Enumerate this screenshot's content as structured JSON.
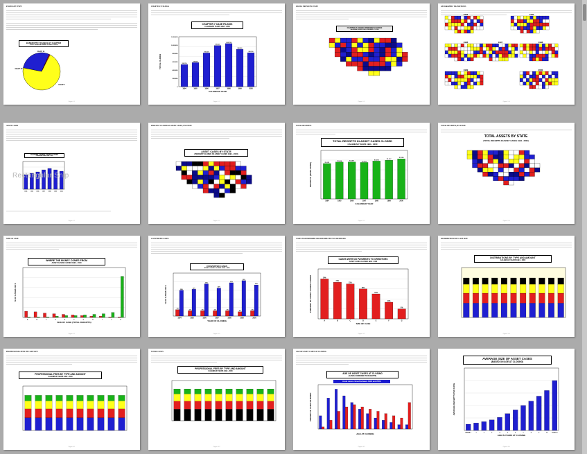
{
  "viewer": {
    "watermark": "Rectangular Snip"
  },
  "colors": {
    "blue": "#1f1fd0",
    "navy": "#0b0b8a",
    "red": "#e21f1f",
    "yellow": "#ffff1a",
    "green": "#19b219",
    "black": "#000000",
    "olive": "#9a9a00"
  },
  "pages": [
    {
      "row": 0,
      "col": 0,
      "lead": "FILINGS BY TYPE",
      "chart_title": "BANKRUPTCY FILINGS BY CHAPTER",
      "chart_subtitle": "TOTAL CASES BETWEEN 1/1994 & 12/2000",
      "figure": "Figure 1.1"
    },
    {
      "row": 0,
      "col": 1,
      "lead": "CHAPTER 7 FILINGS",
      "chart_title": "CHAPTER 7 CASE FILINGS",
      "chart_subtitle": "CALENDAR YEARS 1994 - 2000",
      "xlabel": "CALENDAR YEAR",
      "ylabel": "TOTAL FILINGS",
      "figure": "Figure 1.2"
    },
    {
      "row": 0,
      "col": 2,
      "lead": "FILING TREND BY STATE",
      "chart_title": "CHAPTER 7 FILINGS PERCENT CHANGE",
      "chart_subtitle": "CALENDAR YEARS 1994 COMPARED TO 2000",
      "figure": "Figure 1.3"
    },
    {
      "row": 0,
      "col": 3,
      "lead": "GEOGRAPHIC TRANSITIONS",
      "map_labels": [
        "1994",
        "1995",
        "1996",
        "1997",
        "1998",
        "1999",
        "2000"
      ],
      "figure": "Figure 1.4"
    },
    {
      "row": 1,
      "col": 0,
      "lead": "ASSET CASES",
      "chart_title": "CHAPTER 7 ASSET CASES CLOSED",
      "chart_subtitle": "CALENDAR YEARS 1994 - 2000",
      "figure": "Figure 2.1"
    },
    {
      "row": 1,
      "col": 1,
      "lead": "PERCENT CLOSED AS ASSET CASES, BY STATE",
      "chart_title": "ASSET CASES BY STATE",
      "chart_subtitle": "(PERCENT CLOSED AS ASSET CASES 1994 - 2000)",
      "figure": "Figure 2.2"
    },
    {
      "row": 1,
      "col": 2,
      "lead": "TOTAL RECEIPTS",
      "chart_title": "TOTAL RECEIPTS IN ASSET CASES CLOSED",
      "chart_subtitle": "CALENDAR YEARS 1994 - 2000",
      "xlabel": "CALENDAR YEAR",
      "ylabel": "RECEIPTS (IN MILLIONS)",
      "figure": "Figure 2.3"
    },
    {
      "row": 1,
      "col": 3,
      "lead": "TOTAL RECEIPTS, BY STATE",
      "chart_title": "TOTAL ASSETS BY STATE",
      "chart_subtitle": "(TOTAL RECEIPTS IN ASSET CASES 1994 - 2000)",
      "figure": "Figure 2.4"
    },
    {
      "row": 2,
      "col": 0,
      "lead": "SIZE OF CASE",
      "chart_title": "WHERE THE MONEY COMES FROM",
      "chart_subtitle": "ASSET CASES CLOSED 1994 - 2000",
      "xlabel": "SIZE OF CASE (TOTAL RECEIPTS)",
      "ylabel": "% OF CASES OR $",
      "figure": "Figure 3.1"
    },
    {
      "row": 2,
      "col": 1,
      "lead": "CONVERTED CASES",
      "chart_title": "CONVERTED CASES",
      "chart_subtitle": "ASSET CASES CLOSED 1994 - 2000",
      "xlabel": "YEAR OF CLOSING",
      "ylabel": "% OF CASES OR $",
      "figure": "Figure 3.2"
    },
    {
      "row": 2,
      "col": 2,
      "lead": "CASES TRANSFERRED OR DISTRIBUTED TO CREDITORS",
      "chart_title": "CASES WITH NO PAYMENTS TO CREDITORS",
      "chart_subtitle": "ASSET CASES CLOSED 1994 - 2000",
      "xlabel": "SIZE OF CASE",
      "ylabel": "PERCENT OF ASSET CASES CLOSED",
      "figure": "Figure 3.3"
    },
    {
      "row": 2,
      "col": 3,
      "lead": "DISTRIBUTIONS BY CASE SIZE",
      "chart_title": "DISTRIBUTIONS BY TYPE AND AMOUNT",
      "chart_subtitle": "CALENDAR YEARS 1994 - 2000",
      "xlabel": "SIZE OF CASE",
      "ylabel": "% OF TOTAL RECEIPTS",
      "figure": "Figure 3.4"
    },
    {
      "row": 3,
      "col": 0,
      "lead": "PROFESSIONAL FEES BY CASE SIZE",
      "chart_title": "PROFESSIONAL FEES BY TYPE AND AMOUNT",
      "chart_subtitle": "CALENDAR YEARS 1994 - 2000",
      "xlabel": "SIZE OF CASE",
      "ylabel": "% OF TOTAL RECEIPTS",
      "figure": "Figure 4.1"
    },
    {
      "row": 3,
      "col": 1,
      "lead": "TOTAL COSTS",
      "chart_title": "PROFESSIONAL FEES BY TYPE AND AMOUNT",
      "chart_subtitle": "CALENDAR YEARS 1994 - 2000",
      "xlabel": "SIZE OF CASE",
      "ylabel": "% OF TOTAL RECEIPTS",
      "figure": "Figure 4.2"
    },
    {
      "row": 3,
      "col": 2,
      "lead": "AGE OF ASSET CASES AT CLOSING",
      "chart_title": "AGE OF ASSET CASES AT CLOSING",
      "chart_subtitle": "(CASES COMPARED TO RECEIPTS)",
      "annotation": "Asset cases closed between 1994 and 2000.",
      "xlabel": "AGE AT CLOSING",
      "ylabel": "PERCENT OF CASES OR MONEY",
      "figure": "Figure 4.3"
    },
    {
      "row": 3,
      "col": 3,
      "lead": "",
      "chart_title": "AVERAGE SIZE OF ASSET CASES",
      "chart_subtitle": "(BASED ON AGE AT CLOSING)",
      "annotation": "Asset cases closed between 1994 and 2000.",
      "xlabel": "AGE IN YEARS AT CLOSING",
      "ylabel": "AVERAGE RECEIPTS PER CASE",
      "figure": "Figure 4.4"
    }
  ],
  "chart_data": [
    {
      "type": "pie",
      "title": "BANKRUPTCY FILINGS BY CHAPTER",
      "subtitle": "TOTAL CASES BETWEEN 1/1994 & 12/2000",
      "slices": [
        {
          "name": "CHAP 7",
          "value": 70.6
        },
        {
          "name": "CHAP 13",
          "value": 28.6
        },
        {
          "name": "CHAP 11",
          "value": 0.8
        }
      ]
    },
    {
      "type": "bar",
      "title": "CHAPTER 7 CASE FILINGS",
      "subtitle": "CALENDAR YEARS 1994 - 2000",
      "categories": [
        "1994",
        "1995",
        "1996",
        "1997",
        "1998",
        "1999",
        "2000"
      ],
      "values": [
        532700,
        578800,
        810400,
        989400,
        1035700,
        898800,
        816100
      ],
      "xlabel": "CALENDAR YEAR",
      "ylabel": "TOTAL FILINGS",
      "ylim": [
        0,
        1200000
      ],
      "yticks": [
        "0",
        "200,000",
        "400,000",
        "600,000",
        "800,000",
        "1,000,000",
        "1,200,000"
      ]
    },
    {
      "type": "bar",
      "title": "CHAPTER 7 ASSET CASES CLOSED",
      "subtitle": "CALENDAR YEARS 1994 - 2000",
      "categories": [
        "1994",
        "1995",
        "1996",
        "1997",
        "1998",
        "1999",
        "2000"
      ],
      "values": [
        21,
        23,
        25,
        28,
        30,
        28,
        26
      ],
      "ylim": [
        0,
        40
      ]
    },
    {
      "type": "bar",
      "title": "TOTAL RECEIPTS IN ASSET CASES CLOSED",
      "subtitle": "CALENDAR YEARS 1994 - 2000",
      "categories": [
        "1994",
        "1995",
        "1996",
        "1997",
        "1998",
        "1999",
        "2000"
      ],
      "values": [
        1021,
        1064,
        1067,
        1052,
        1093,
        1117,
        1156
      ],
      "xlabel": "CALENDAR YEAR",
      "ylabel": "RECEIPTS (IN MILLIONS)",
      "ylim": [
        0,
        1400
      ]
    },
    {
      "type": "bar",
      "title": "WHERE THE MONEY COMES FROM",
      "subtitle": "ASSET CASES CLOSED 1994 - 2000",
      "categories": [
        "A",
        "B",
        "C",
        "D",
        "E",
        "F",
        "G",
        "H",
        "I",
        "J",
        "K"
      ],
      "series": [
        {
          "name": "% OF CASES",
          "values": [
            10,
            9,
            7,
            6,
            5,
            4,
            3,
            2,
            2,
            1,
            1
          ]
        },
        {
          "name": "% OF RECEIPTS",
          "values": [
            1,
            1,
            1,
            2,
            3,
            3,
            4,
            5,
            6,
            8,
            66
          ]
        }
      ],
      "xlabel": "SIZE OF CASE (TOTAL RECEIPTS)",
      "ylabel": "% OF CASES OR $",
      "ylim": [
        0,
        80
      ]
    },
    {
      "type": "bar",
      "title": "CONVERTED CASES",
      "subtitle": "ASSET CASES CLOSED 1994 - 2000",
      "categories": [
        "1994",
        "1995",
        "1996",
        "1997",
        "1998",
        "1999",
        "2000"
      ],
      "series": [
        {
          "name": "% OF CASES",
          "values": [
            6,
            5,
            5,
            5,
            5,
            4,
            5
          ]
        },
        {
          "name": "% OF RECEIPTS",
          "values": [
            24,
            25,
            30,
            26,
            31,
            33,
            29
          ]
        }
      ],
      "xlabel": "YEAR OF CLOSING",
      "ylabel": "% OF CASES OR $",
      "ylim": [
        0,
        40
      ]
    },
    {
      "type": "bar",
      "title": "CASES WITH NO PAYMENTS TO CREDITORS",
      "subtitle": "ASSET CASES CLOSED 1994 - 2000",
      "categories": [
        "A",
        "B",
        "C",
        "D",
        "E",
        "F",
        "G"
      ],
      "values": [
        24,
        22,
        21,
        18,
        15,
        10,
        6
      ],
      "xlabel": "SIZE OF CASE",
      "ylabel": "PERCENT OF ASSET CASES CLOSED",
      "ylim": [
        0,
        30
      ]
    },
    {
      "type": "bar",
      "title": "AVERAGE SIZE OF ASSET CASES",
      "subtitle": "(BASED ON AGE AT CLOSING)",
      "categories": [
        "UNDER 1",
        "1",
        "2",
        "3",
        "4",
        "5",
        "6",
        "7",
        "8",
        "9",
        "10",
        "OVER 10"
      ],
      "values": [
        10,
        12,
        14,
        17,
        21,
        27,
        33,
        40,
        47,
        55,
        64,
        80
      ],
      "xlabel": "AGE IN YEARS AT CLOSING",
      "ylabel": "AVERAGE RECEIPTS PER CASE",
      "ylim": [
        0,
        100
      ]
    }
  ]
}
